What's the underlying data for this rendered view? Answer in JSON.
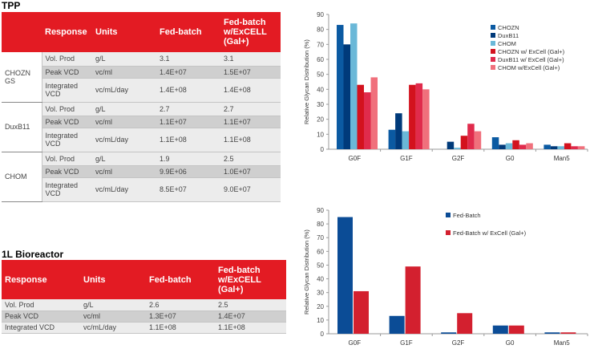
{
  "tpp": {
    "title": "TPP",
    "headers": [
      "Response",
      "Units",
      "Fed-batch",
      "Fed-batch w/ExCELL (Gal+)"
    ],
    "groups": [
      {
        "name": "CHOZN GS",
        "rows": [
          {
            "response": "Vol. Prod",
            "units": "g/L",
            "fed_batch": "3.1",
            "fed_batch_excell": "3.1"
          },
          {
            "response": "Peak VCD",
            "units": "vc/ml",
            "fed_batch": "1.4E+07",
            "fed_batch_excell": "1.5E+07"
          },
          {
            "response": "Integrated VCD",
            "units": "vc/mL/day",
            "fed_batch": "1.4E+08",
            "fed_batch_excell": "1.4E+08"
          }
        ]
      },
      {
        "name": "DuxB11",
        "rows": [
          {
            "response": "Vol. Prod",
            "units": "g/L",
            "fed_batch": "2.7",
            "fed_batch_excell": "2.7"
          },
          {
            "response": "Peak VCD",
            "units": "vc/ml",
            "fed_batch": "1.1E+07",
            "fed_batch_excell": "1.1E+07"
          },
          {
            "response": "Integrated VCD",
            "units": "vc/mL/day",
            "fed_batch": "1.1E+08",
            "fed_batch_excell": "1.1E+08"
          }
        ]
      },
      {
        "name": "CHOM",
        "rows": [
          {
            "response": "Vol. Prod",
            "units": "g/L",
            "fed_batch": "1.9",
            "fed_batch_excell": "2.5"
          },
          {
            "response": "Peak VCD",
            "units": "vc/ml",
            "fed_batch": "9.9E+06",
            "fed_batch_excell": "1.0E+07"
          },
          {
            "response": "Integrated VCD",
            "units": "vc/mL/day",
            "fed_batch": "8.5E+07",
            "fed_batch_excell": "9.0E+07"
          }
        ]
      }
    ]
  },
  "bioreactor": {
    "title": "1L Bioreactor",
    "headers": [
      "Response",
      "Units",
      "Fed-batch",
      "Fed-batch w/ExCELL (Gal+)"
    ],
    "rows": [
      {
        "response": "Vol. Prod",
        "units": "g/L",
        "fed_batch": "2.6",
        "fed_batch_excell": "2.5"
      },
      {
        "response": "Peak VCD",
        "units": "vc/ml",
        "fed_batch": "1.3E+07",
        "fed_batch_excell": "1.4E+07"
      },
      {
        "response": "Integrated VCD",
        "units": "vc/mL/day",
        "fed_batch": "1.1E+08",
        "fed_batch_excell": "1.1E+08"
      }
    ]
  },
  "chart_data": [
    {
      "type": "bar",
      "ylabel": "Relative Glycan Distribution (%)",
      "xlabel": "",
      "categories": [
        "G0F",
        "G1F",
        "G2F",
        "G0",
        "Man5"
      ],
      "ylim": [
        0,
        90
      ],
      "yticks": [
        0,
        10,
        20,
        30,
        40,
        50,
        60,
        70,
        80,
        90
      ],
      "legend_position": "top-right",
      "grid": false,
      "series": [
        {
          "name": "CHOZN",
          "color": "#0b5aa2",
          "values": [
            83,
            13,
            0,
            8,
            3
          ]
        },
        {
          "name": "DuxB11",
          "color": "#003a7a",
          "values": [
            70,
            24,
            5,
            3,
            2
          ]
        },
        {
          "name": "CHOM",
          "color": "#6ab8d8",
          "values": [
            84,
            12,
            1,
            4,
            2
          ]
        },
        {
          "name": "CHOZN w/ ExCell (Gal+)",
          "color": "#d3121e",
          "values": [
            43,
            43,
            9,
            6,
            4
          ]
        },
        {
          "name": "DuxB11 w/ ExCell (Gal+)",
          "color": "#e02b4c",
          "values": [
            38,
            44,
            17,
            3,
            2
          ]
        },
        {
          "name": "CHOM w/ExCell (Gal+)",
          "color": "#f0707c",
          "values": [
            48,
            40,
            12,
            4,
            2
          ]
        }
      ]
    },
    {
      "type": "bar",
      "ylabel": "Relative Glycan Distribution (%)",
      "xlabel": "",
      "categories": [
        "G0F",
        "G1F",
        "G2F",
        "G0",
        "Man5"
      ],
      "ylim": [
        0,
        90
      ],
      "yticks": [
        0,
        10,
        20,
        30,
        40,
        50,
        60,
        70,
        80,
        90
      ],
      "legend_position": "top-right",
      "grid": false,
      "series": [
        {
          "name": "Fed-Batch",
          "color": "#0b4c96",
          "values": [
            85,
            13,
            1,
            6,
            1
          ]
        },
        {
          "name": "Fed-Batch w/ ExCell (Gal+)",
          "color": "#d3202f",
          "values": [
            31,
            49,
            15,
            6,
            1
          ]
        }
      ]
    }
  ]
}
